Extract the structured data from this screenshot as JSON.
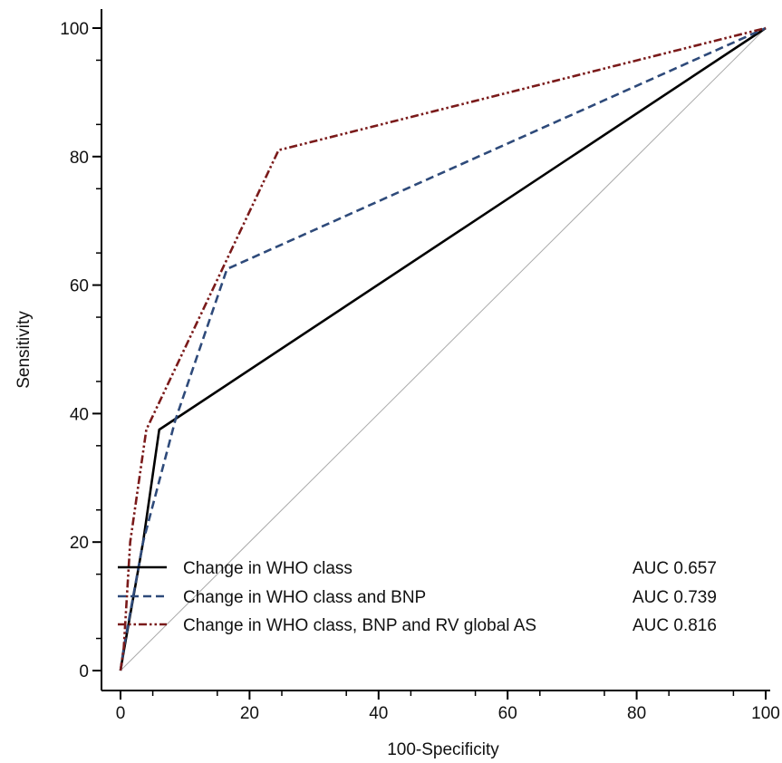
{
  "chart_data": {
    "type": "line",
    "title": "",
    "xlabel": "100-Specificity",
    "ylabel": "Sensitivity",
    "xlim": [
      0,
      100
    ],
    "ylim": [
      0,
      100
    ],
    "xticks": [
      0,
      20,
      40,
      60,
      80,
      100
    ],
    "yticks": [
      0,
      20,
      40,
      60,
      80,
      100
    ],
    "xtick_labels": [
      "0",
      "20",
      "40",
      "60",
      "80",
      "100"
    ],
    "ytick_labels": [
      "0",
      "20",
      "40",
      "60",
      "80",
      "100"
    ],
    "grid": false,
    "legend_position": "bottom-left",
    "reference_line": {
      "x": [
        0,
        100
      ],
      "y": [
        0,
        100
      ],
      "color": "#aaaaaa"
    },
    "series": [
      {
        "name": "Change in WHO class",
        "auc_label": "AUC 0.657",
        "color": "#000000",
        "dash": "solid",
        "x": [
          0,
          0.5,
          3.5,
          6,
          100
        ],
        "y": [
          0,
          3,
          20,
          37.5,
          100
        ]
      },
      {
        "name": "Change in WHO class and BNP",
        "auc_label": "AUC 0.739",
        "color": "#2e4a7a",
        "dash": "dashed",
        "x": [
          0,
          0.5,
          3.5,
          8.5,
          16.5,
          100
        ],
        "y": [
          0,
          3.5,
          20,
          39,
          62.5,
          100
        ]
      },
      {
        "name": "Change in WHO class, BNP and RV global AS",
        "auc_label": "AUC 0.816",
        "color": "#7a1a1a",
        "dash": "dashdotdot",
        "x": [
          0,
          0.5,
          1.5,
          4,
          24.5,
          100
        ],
        "y": [
          0,
          3.5,
          20,
          37.5,
          81,
          100
        ]
      }
    ]
  }
}
